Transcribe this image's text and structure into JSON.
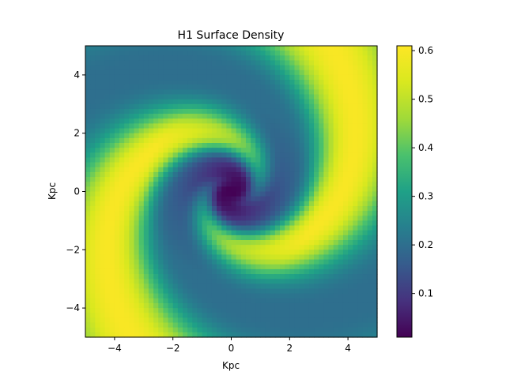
{
  "chart_data": {
    "type": "heatmap",
    "title": "H1 Surface Density",
    "xlabel": "Kpc",
    "ylabel": "Kpc",
    "xlim": [
      -5,
      5
    ],
    "ylim": [
      -5,
      5
    ],
    "x_ticks": [
      -4,
      -2,
      0,
      2,
      4
    ],
    "y_ticks": [
      -4,
      -2,
      0,
      2,
      4
    ],
    "x_tick_labels": [
      "−4",
      "−2",
      "0",
      "2",
      "4"
    ],
    "y_tick_labels": [
      "−4",
      "−2",
      "0",
      "2",
      "4"
    ],
    "colormap": "viridis",
    "colorbar": {
      "range": [
        0.01,
        0.61
      ],
      "ticks": [
        0.1,
        0.2,
        0.3,
        0.4,
        0.5,
        0.6
      ],
      "tick_labels": [
        "0.1",
        "0.2",
        "0.3",
        "0.4",
        "0.5",
        "0.6"
      ]
    },
    "grid": false,
    "grid_resolution": 60,
    "density_model": {
      "description_of_features": "two-armed logarithmic spiral",
      "core_value": 0.01,
      "arm_peak": 0.6,
      "inter_arm": 0.2
    }
  }
}
